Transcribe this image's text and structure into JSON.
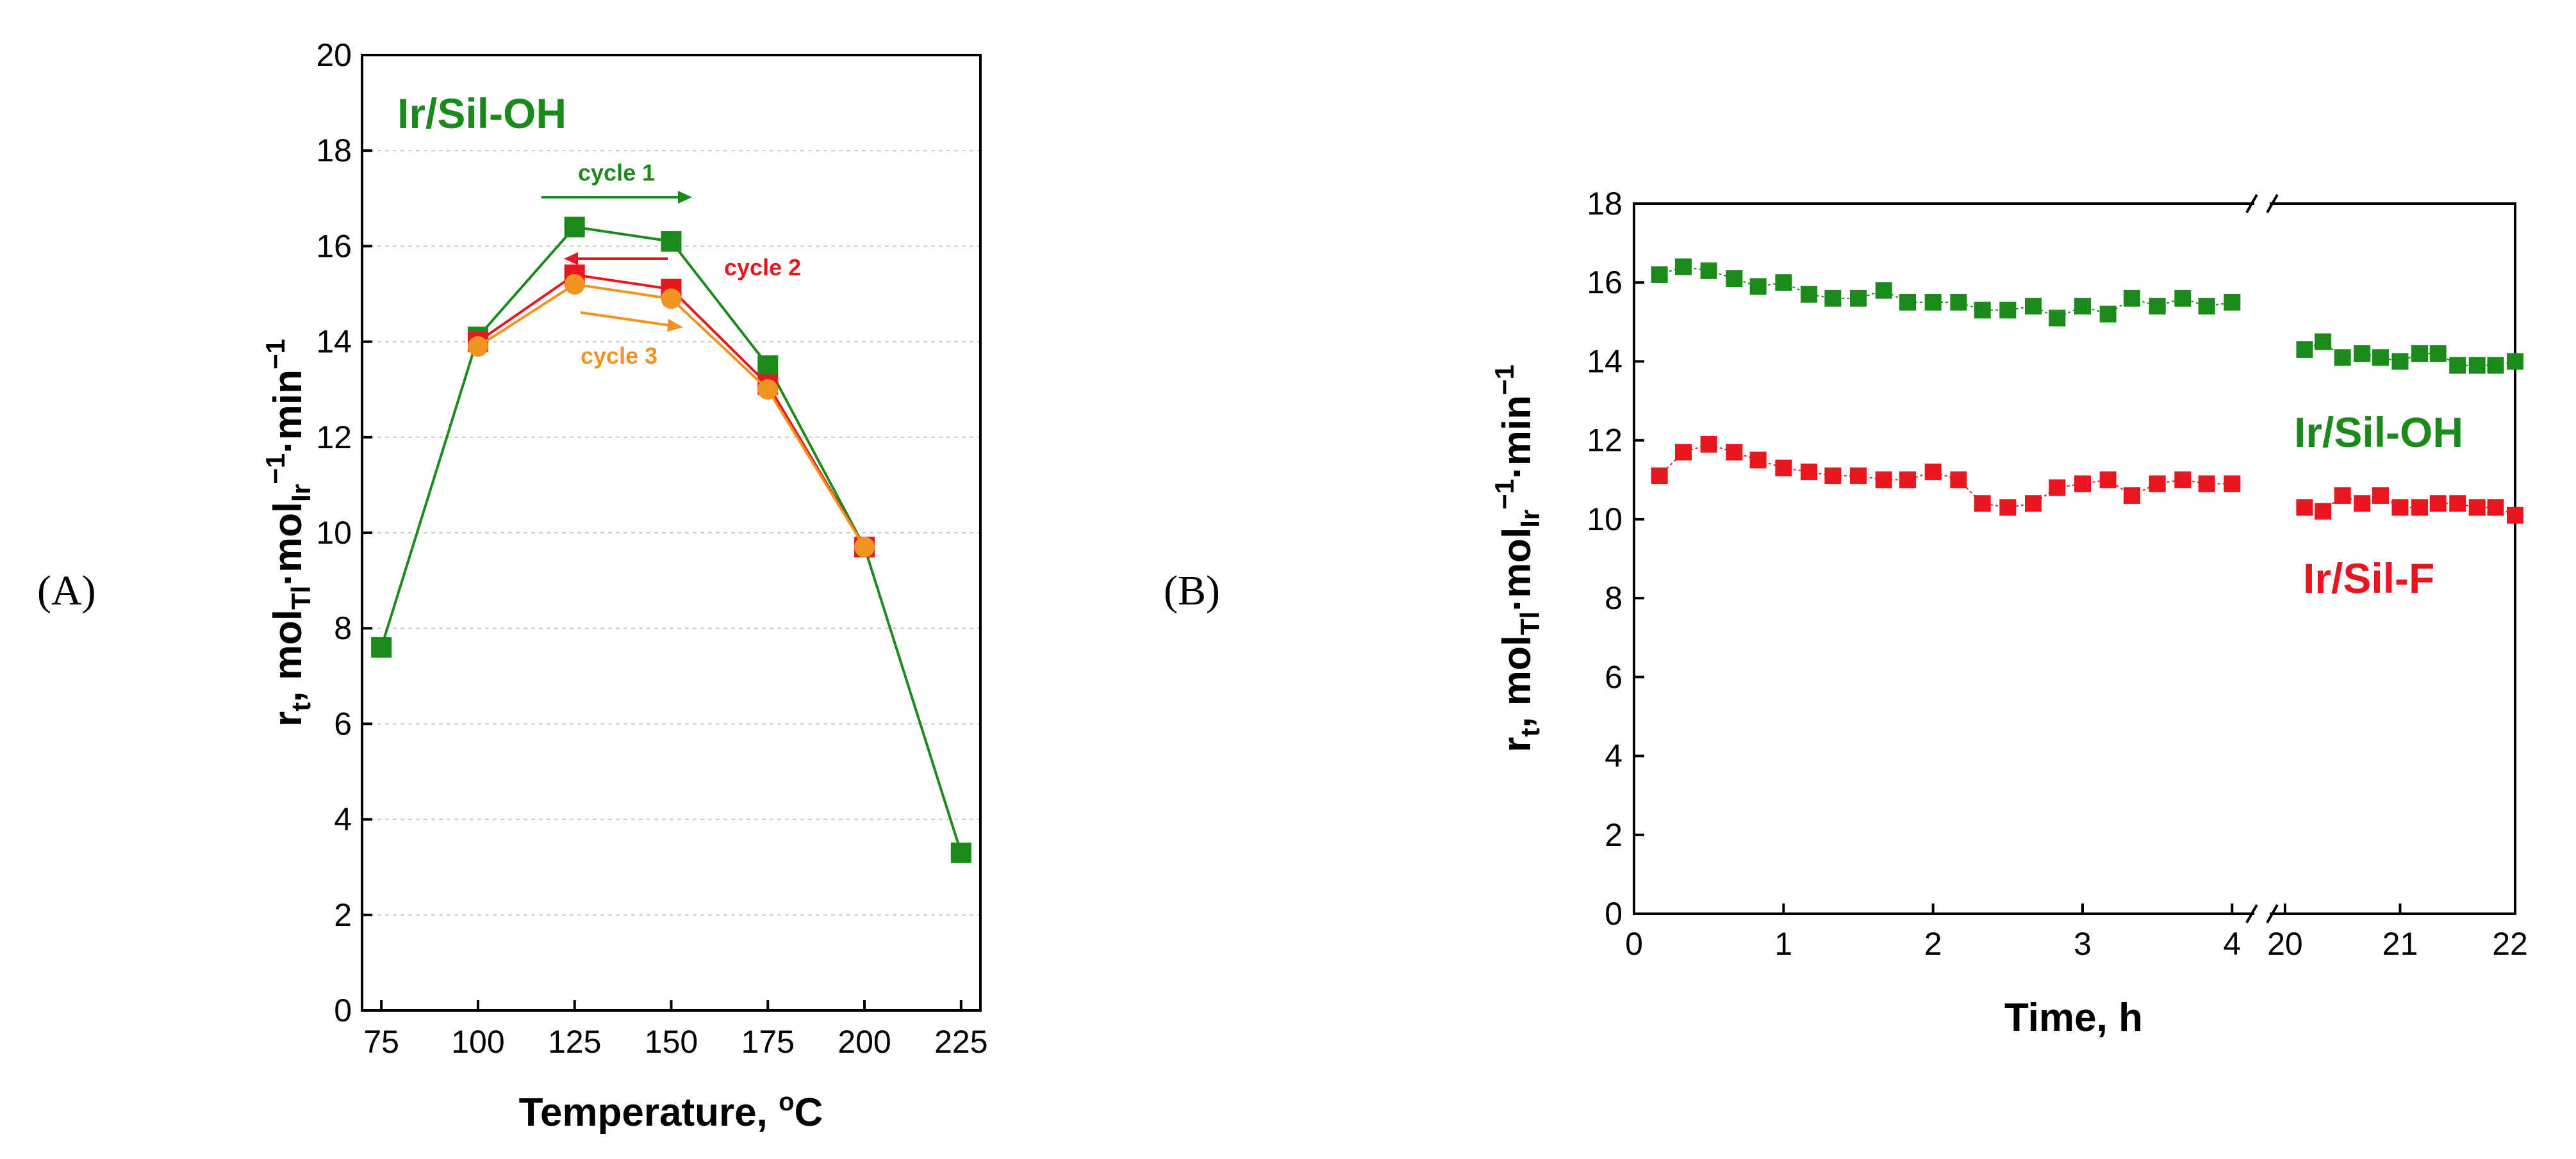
{
  "panel_labels": {
    "a": "(A)",
    "b": "(B)"
  },
  "colors": {
    "green": "#1a8a1a",
    "red": "#e8171f",
    "orange": "#f09320",
    "black": "#000000"
  },
  "chart_data": [
    {
      "id": "A",
      "type": "line",
      "title": "",
      "series_label": "Ir/Sil-OH",
      "xlabel": "Temperature, ",
      "xlabel_sup": "o",
      "xlabel_end": "C",
      "ylabel": {
        "base": "r",
        "sub1": "t",
        "mid1": ", mol",
        "sub2": "Tl",
        "mid2": "·mol",
        "sub3": "Ir",
        "sup3": "−1",
        "mid3": "·min",
        "sup4": "−1"
      },
      "xlim": [
        70,
        230
      ],
      "ylim": [
        0,
        20
      ],
      "xticks": [
        75,
        100,
        125,
        150,
        175,
        200,
        225
      ],
      "yticks": [
        0,
        2,
        4,
        6,
        8,
        10,
        12,
        14,
        16,
        18,
        20
      ],
      "grid": true,
      "series": [
        {
          "name": "cycle 1",
          "color": "#1a8a1a",
          "marker": "square",
          "x": [
            75,
            100,
            125,
            150,
            175,
            200,
            225
          ],
          "y": [
            7.6,
            14.1,
            16.4,
            16.1,
            13.5,
            9.7,
            3.3
          ]
        },
        {
          "name": "cycle 2",
          "color": "#e8171f",
          "marker": "square",
          "x": [
            100,
            125,
            150,
            175,
            200
          ],
          "y": [
            14.0,
            15.4,
            15.1,
            13.1,
            9.7
          ]
        },
        {
          "name": "cycle 3",
          "color": "#f09320",
          "marker": "circle",
          "x": [
            100,
            125,
            150,
            175,
            200
          ],
          "y": [
            13.9,
            15.2,
            14.9,
            13.0,
            9.7
          ]
        }
      ],
      "annotations": [
        {
          "text": "cycle 1",
          "color": "#1a8a1a"
        },
        {
          "text": "cycle 2",
          "color": "#e8171f"
        },
        {
          "text": "cycle 3",
          "color": "#f09320"
        }
      ]
    },
    {
      "id": "B",
      "type": "line",
      "title": "",
      "xlabel": "Time, h",
      "ylabel": {
        "base": "r",
        "sub1": "t",
        "mid1": ", mol",
        "sub2": "Tl",
        "mid2": "·mol",
        "sub3": "Ir",
        "sup3": "−1",
        "mid3": "·min",
        "sup4": "−1"
      },
      "broken_x_axis": true,
      "xlim_segment1": [
        0,
        4.2
      ],
      "xlim_segment2": [
        19.8,
        22
      ],
      "xticks_segment1": [
        0,
        1,
        2,
        3,
        4
      ],
      "xticks_segment2": [
        20,
        21,
        22
      ],
      "ylim": [
        0,
        18
      ],
      "yticks": [
        0,
        2,
        4,
        6,
        8,
        10,
        12,
        14,
        16,
        18
      ],
      "grid": false,
      "series": [
        {
          "name": "Ir/Sil-OH",
          "color": "#1a8a1a",
          "marker": "square",
          "x": [
            0.17,
            0.33,
            0.5,
            0.67,
            0.83,
            1.0,
            1.17,
            1.33,
            1.5,
            1.67,
            1.83,
            2.0,
            2.17,
            2.33,
            2.5,
            2.67,
            2.83,
            3.0,
            3.17,
            3.33,
            3.5,
            3.67,
            3.83,
            4.0
          ],
          "y": [
            16.2,
            16.4,
            16.3,
            16.1,
            15.9,
            16.0,
            15.7,
            15.6,
            15.6,
            15.8,
            15.5,
            15.5,
            15.5,
            15.3,
            15.3,
            15.4,
            15.1,
            15.4,
            15.2,
            15.6,
            15.4,
            15.6,
            15.4,
            15.5
          ],
          "x2": [
            20.17,
            20.33,
            20.5,
            20.67,
            20.83,
            21.0,
            21.17,
            21.33,
            21.5,
            21.67,
            21.83,
            22.0
          ],
          "y2": [
            14.3,
            14.5,
            14.1,
            14.2,
            14.1,
            14.0,
            14.2,
            14.2,
            13.9,
            13.9,
            13.9,
            14.0
          ]
        },
        {
          "name": "Ir/Sil-F",
          "color": "#e8171f",
          "marker": "square",
          "x": [
            0.17,
            0.33,
            0.5,
            0.67,
            0.83,
            1.0,
            1.17,
            1.33,
            1.5,
            1.67,
            1.83,
            2.0,
            2.17,
            2.33,
            2.5,
            2.67,
            2.83,
            3.0,
            3.17,
            3.33,
            3.5,
            3.67,
            3.83,
            4.0
          ],
          "y": [
            11.1,
            11.7,
            11.9,
            11.7,
            11.5,
            11.3,
            11.2,
            11.1,
            11.1,
            11.0,
            11.0,
            11.2,
            11.0,
            10.4,
            10.3,
            10.4,
            10.8,
            10.9,
            11.0,
            10.6,
            10.9,
            11.0,
            10.9,
            10.9
          ],
          "x2": [
            20.17,
            20.33,
            20.5,
            20.67,
            20.83,
            21.0,
            21.17,
            21.33,
            21.5,
            21.67,
            21.83,
            22.0
          ],
          "y2": [
            10.3,
            10.2,
            10.6,
            10.4,
            10.6,
            10.3,
            10.3,
            10.4,
            10.4,
            10.3,
            10.3,
            10.1
          ]
        }
      ],
      "series_labels": [
        "Ir/Sil-OH",
        "Ir/Sil-F"
      ]
    }
  ]
}
